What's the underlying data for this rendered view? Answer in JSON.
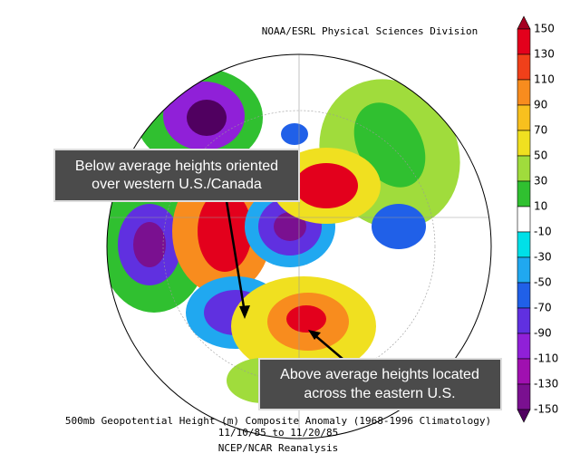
{
  "header": {
    "title": "NOAA/ESRL Physical Sciences Division"
  },
  "annotations": [
    {
      "lines": [
        "Below average heights oriented",
        "over western U.S./Canada"
      ]
    },
    {
      "lines": [
        "Above average heights located",
        "across the eastern U.S."
      ]
    }
  ],
  "caption": [
    "500mb Geopotential Height (m) Composite Anomaly (1968-1996 Climatology)",
    "11/10/85   to 11/20/85",
    "NCEP/NCAR Reanalysis"
  ],
  "colorbar": {
    "labels": [
      150,
      130,
      110,
      90,
      70,
      50,
      30,
      10,
      -10,
      -30,
      -50,
      -70,
      -90,
      -110,
      -130,
      -150
    ],
    "colors": [
      "#a50021",
      "#e3001c",
      "#f0401a",
      "#f88c1e",
      "#f8c01e",
      "#f0e020",
      "#a0dc3c",
      "#30c030",
      "#ffffff",
      "#00e0e8",
      "#20a8f0",
      "#2060e8",
      "#6030e0",
      "#9020d8",
      "#a010b0",
      "#7a1090",
      "#500060"
    ]
  }
}
